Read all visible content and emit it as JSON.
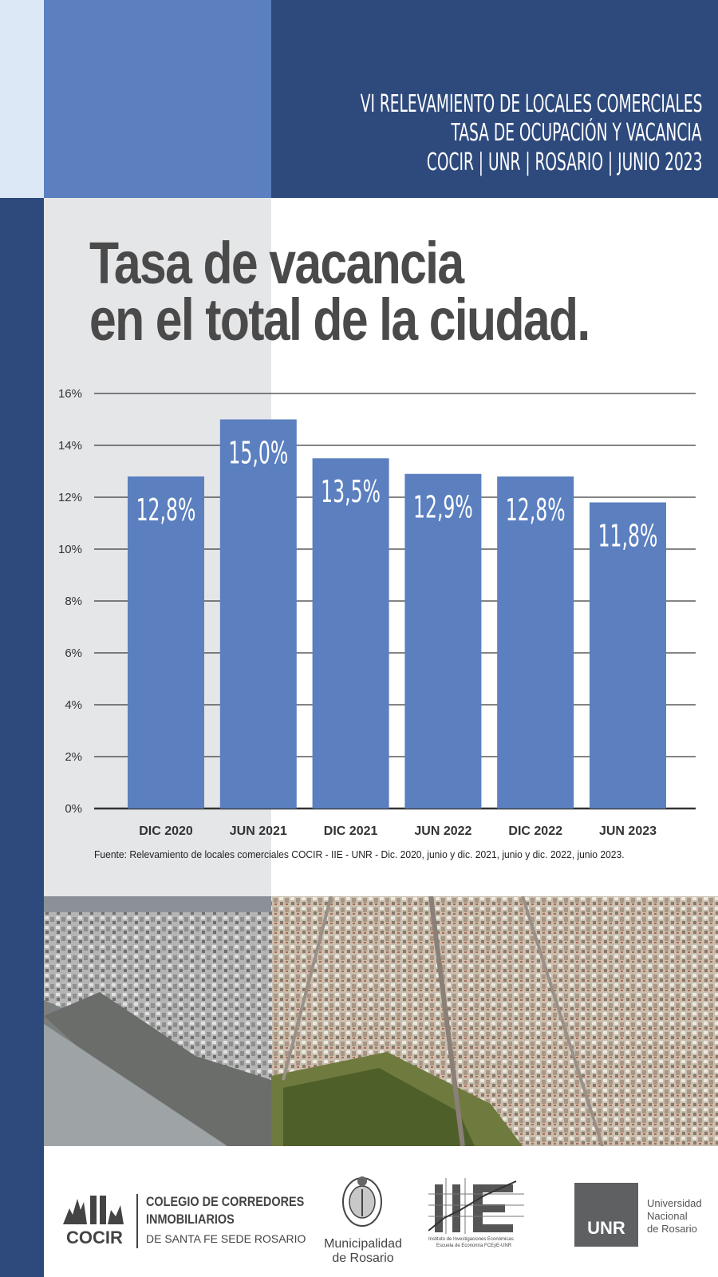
{
  "header": {
    "line1": "VI RELEVAMIENTO DE LOCALES COMERCIALES",
    "line2": "TASA DE OCUPACIÓN Y VACANCIA",
    "line3": "COCIR | UNR | ROSARIO | JUNIO 2023"
  },
  "title": {
    "line1": "Tasa de vacancia",
    "line2": "en el total de la ciudad."
  },
  "chart_data": {
    "type": "bar",
    "categories": [
      "DIC 2020",
      "JUN 2021",
      "DIC 2021",
      "JUN 2022",
      "DIC 2022",
      "JUN 2023"
    ],
    "values": [
      12.8,
      15.0,
      13.5,
      12.9,
      12.8,
      11.8
    ],
    "data_labels": [
      "12,8%",
      "15,0%",
      "13,5%",
      "12,9%",
      "12,8%",
      "11,8%"
    ],
    "ylim": [
      0,
      16
    ],
    "yticks": [
      0,
      2,
      4,
      6,
      8,
      10,
      12,
      14,
      16
    ],
    "ytick_labels": [
      "0%",
      "2%",
      "4%",
      "6%",
      "8%",
      "10%",
      "12%",
      "14%",
      "16%"
    ],
    "grid": true,
    "bar_color": "#5b7fbf"
  },
  "source": "Fuente: Relevamiento de locales comerciales COCIR - IIE - UNR - Dic. 2020, junio y dic. 2021, junio y dic. 2022, junio 2023.",
  "footer": {
    "cocir": {
      "mark": "COCIR",
      "line1": "COLEGIO DE CORREDORES",
      "line2": "INMOBILIARIOS",
      "line3": "DE SANTA FE SEDE ROSARIO"
    },
    "municipalidad": {
      "line1": "Municipalidad",
      "line2": "de Rosario"
    },
    "iie": {
      "mark": "IIE",
      "line1": "Instituto de Investigaciones Económicas",
      "line2": "Escuela de Economía FCEyE-UNR"
    },
    "unr": {
      "mark": "UNR",
      "line1": "Universidad",
      "line2": "Nacional",
      "line3": "de Rosario"
    }
  },
  "colors": {
    "dark_blue": "#2e4a7d",
    "light_blue": "#5b7fbf",
    "pale_blue": "#dce8f5",
    "gray_panel": "#e5e6e8",
    "title_gray": "#4a4a4a"
  }
}
